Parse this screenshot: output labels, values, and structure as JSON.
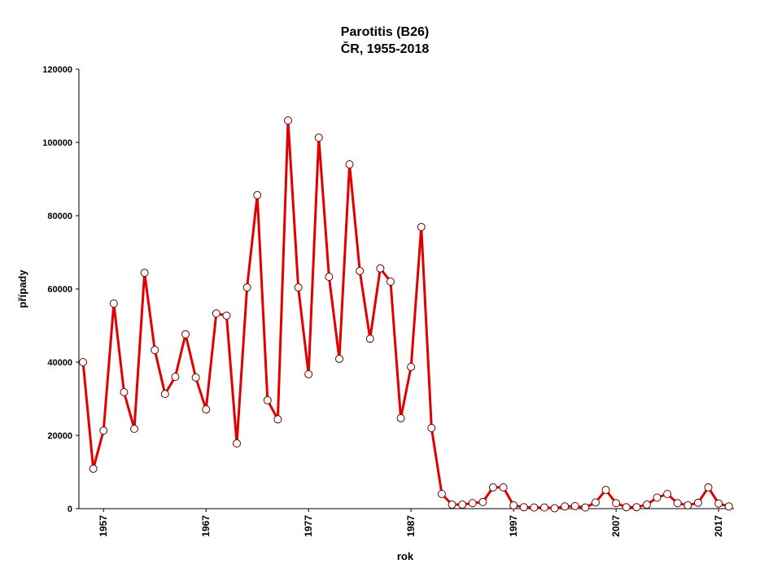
{
  "chart_data": {
    "type": "line",
    "title": "Parotitis (B26)",
    "subtitle": "ČR, 1955-2018",
    "xlabel": "rok",
    "ylabel": "případy",
    "x": [
      1955,
      1956,
      1957,
      1958,
      1959,
      1960,
      1961,
      1962,
      1963,
      1964,
      1965,
      1966,
      1967,
      1968,
      1969,
      1970,
      1971,
      1972,
      1973,
      1974,
      1975,
      1976,
      1977,
      1978,
      1979,
      1980,
      1981,
      1982,
      1983,
      1984,
      1985,
      1986,
      1987,
      1988,
      1989,
      1990,
      1991,
      1992,
      1993,
      1994,
      1995,
      1996,
      1997,
      1998,
      1999,
      2000,
      2001,
      2002,
      2003,
      2004,
      2005,
      2006,
      2007,
      2008,
      2009,
      2010,
      2011,
      2012,
      2013,
      2014,
      2015,
      2016,
      2017,
      2018
    ],
    "series": [
      {
        "name": "případy",
        "color": "#e00000",
        "values": [
          40000,
          10900,
          21300,
          56000,
          31800,
          21800,
          64400,
          43300,
          31300,
          36000,
          47600,
          35800,
          27100,
          53300,
          52700,
          17800,
          60400,
          85600,
          29600,
          24400,
          106000,
          60400,
          36700,
          101300,
          63300,
          40900,
          94000,
          64900,
          46400,
          65600,
          62000,
          24700,
          38700,
          76900,
          22000,
          4000,
          1100,
          1100,
          1500,
          1800,
          5800,
          5800,
          900,
          400,
          300,
          300,
          100,
          600,
          700,
          300,
          1700,
          5100,
          1500,
          400,
          400,
          1100,
          3000,
          4000,
          1500,
          900,
          1600,
          5800,
          1400,
          600
        ]
      }
    ],
    "xlim": [
      1954.6,
      2018.5
    ],
    "xticks": [
      1957,
      1967,
      1977,
      1987,
      1997,
      2007,
      2017
    ],
    "ylim": [
      0,
      120000
    ],
    "yticks": [
      0,
      20000,
      40000,
      60000,
      80000,
      100000,
      120000
    ],
    "grid": false
  }
}
